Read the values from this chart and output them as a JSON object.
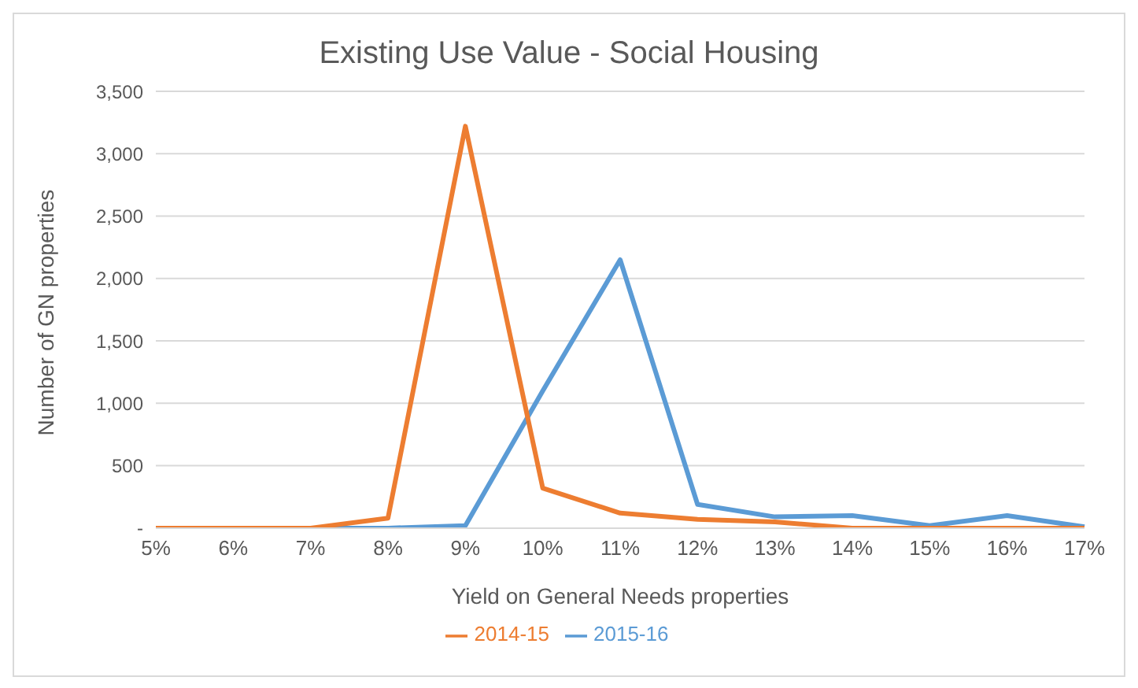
{
  "chart_data": {
    "type": "line",
    "title": "Existing Use Value - Social Housing",
    "xlabel": "Yield on General Needs properties",
    "ylabel": "Number of GN properties",
    "categories": [
      "5%",
      "6%",
      "7%",
      "8%",
      "9%",
      "10%",
      "11%",
      "12%",
      "13%",
      "14%",
      "15%",
      "16%",
      "17%"
    ],
    "series": [
      {
        "name": "2015-16",
        "color": "#5b9bd5",
        "values": [
          0,
          0,
          0,
          0,
          20,
          1100,
          2150,
          190,
          90,
          100,
          20,
          100,
          10
        ]
      },
      {
        "name": "2014-15",
        "color": "#ed7d31",
        "values": [
          0,
          0,
          0,
          80,
          3220,
          320,
          120,
          70,
          50,
          0,
          0,
          0,
          0
        ]
      }
    ],
    "ylim": [
      0,
      3500
    ],
    "yticks": [
      {
        "value": 0,
        "label": "-"
      },
      {
        "value": 500,
        "label": "500"
      },
      {
        "value": 1000,
        "label": "1,000"
      },
      {
        "value": 1500,
        "label": "1,500"
      },
      {
        "value": 2000,
        "label": "2,000"
      },
      {
        "value": 2500,
        "label": "2,500"
      },
      {
        "value": 3000,
        "label": "3,000"
      },
      {
        "value": 3500,
        "label": "3,500"
      }
    ],
    "grid": "y",
    "legend": "bottom",
    "marker": "none",
    "line_style": "solid"
  }
}
